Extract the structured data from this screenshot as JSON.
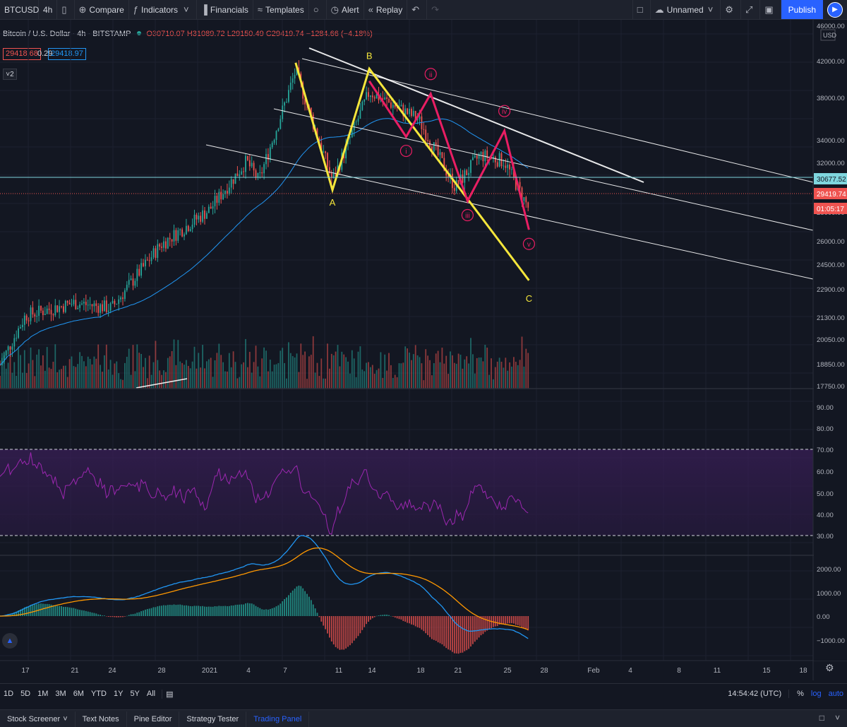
{
  "toolbar": {
    "symbol": "BTCUSD",
    "interval": "4h",
    "compare": "Compare",
    "indicators": "Indicators",
    "financials": "Financials",
    "templates": "Templates",
    "alert": "Alert",
    "replay": "Replay",
    "layout_name": "Unnamed",
    "publish": "Publish"
  },
  "legend": {
    "title": "Bitcoin / U.S. Dollar",
    "interval": "4h",
    "exchange": "BITSTAMP",
    "ohlc": "O30710.07 H31089.72 L29150.49 C29419.74 −1284.66 (−4.18%)",
    "bid": "29418.68",
    "spread": "0.29",
    "ask": "29418.97",
    "collapse_count": "2"
  },
  "price_axis": {
    "currency": "USD",
    "ticks": [
      "46000.00",
      "42000.00",
      "38000.00",
      "34000.00",
      "32000.00",
      "28000.00",
      "26000.00",
      "24500.00",
      "22900.00",
      "21300.00",
      "20050.00",
      "18850.00",
      "17750.00"
    ],
    "marker_hline": "30677.52",
    "marker_last": "29419.74",
    "marker_countdown": "01:05:17"
  },
  "rsi_axis": {
    "ticks": [
      "90.00",
      "80.00",
      "70.00",
      "60.00",
      "50.00",
      "40.00",
      "30.00"
    ]
  },
  "macd_axis": {
    "ticks": [
      "2000.00",
      "1000.00",
      "0.00",
      "−1000.00"
    ]
  },
  "time_axis": {
    "ticks": [
      "17",
      "21",
      "24",
      "28",
      "2021",
      "4",
      "7",
      "11",
      "14",
      "18",
      "21",
      "25",
      "28",
      "Feb",
      "4",
      "8",
      "11",
      "15",
      "18"
    ]
  },
  "wave_labels": {
    "A": "A",
    "B": "B",
    "C": "C",
    "i": "i",
    "ii": "ii",
    "iii": "iii",
    "iv": "iv",
    "v": "v"
  },
  "bottom_bar": {
    "ranges": [
      "1D",
      "5D",
      "1M",
      "3M",
      "6M",
      "YTD",
      "1Y",
      "5Y",
      "All"
    ],
    "clock": "14:54:42 (UTC)",
    "percent": "%",
    "log": "log",
    "auto": "auto"
  },
  "footer_tabs": [
    "Stock Screener",
    "Text Notes",
    "Pine Editor",
    "Strategy Tester",
    "Trading Panel"
  ],
  "colors": {
    "background": "#131722",
    "up": "#26a69a",
    "down": "#ef5350",
    "ma": "#2196f3",
    "wave_abc": "#f5e63b",
    "wave_impulse": "#e91e63",
    "trendline": "#ffffff",
    "rsi": "#9c27b0",
    "macd": "#2196f3",
    "signal": "#ff9800"
  },
  "chart_data": {
    "type": "line",
    "title": "",
    "x_range": [
      "2020-12-14",
      "2021-02-19"
    ],
    "y_scale": "log",
    "y_range": [
      17750,
      46000
    ],
    "price_path": {
      "x": [
        "2020-12-14",
        "2020-12-17",
        "2020-12-21",
        "2020-12-24",
        "2020-12-28",
        "2021-01-01",
        "2021-01-04",
        "2021-01-05",
        "2021-01-07",
        "2021-01-08",
        "2021-01-11",
        "2021-01-14",
        "2021-01-18",
        "2021-01-21",
        "2021-01-23",
        "2021-01-25",
        "2021-01-27"
      ],
      "close": [
        19200,
        22800,
        23500,
        23200,
        27000,
        29400,
        33000,
        31500,
        37500,
        41000,
        31500,
        39000,
        36500,
        31000,
        33500,
        33000,
        29419.74
      ]
    },
    "elliott_abc": {
      "x": [
        "2021-01-08",
        "2021-01-11",
        "2021-01-14",
        "2021-01-27"
      ],
      "y": [
        41800,
        30800,
        41200,
        24800
      ],
      "labels": [
        "",
        "A",
        "B",
        "C"
      ]
    },
    "elliott_impulse": {
      "x": [
        "2021-01-14",
        "2021-01-17",
        "2021-01-19",
        "2021-01-22",
        "2021-01-25",
        "2021-01-27"
      ],
      "y": [
        40000,
        35000,
        38800,
        30000,
        35500,
        28000
      ],
      "labels": [
        "",
        "i",
        "ii",
        "iii",
        "iv",
        "v"
      ]
    },
    "rsi": {
      "overbought": 70,
      "oversold": 30,
      "range": [
        25,
        95
      ]
    },
    "macd": {
      "range": [
        -1300,
        2300
      ]
    }
  }
}
